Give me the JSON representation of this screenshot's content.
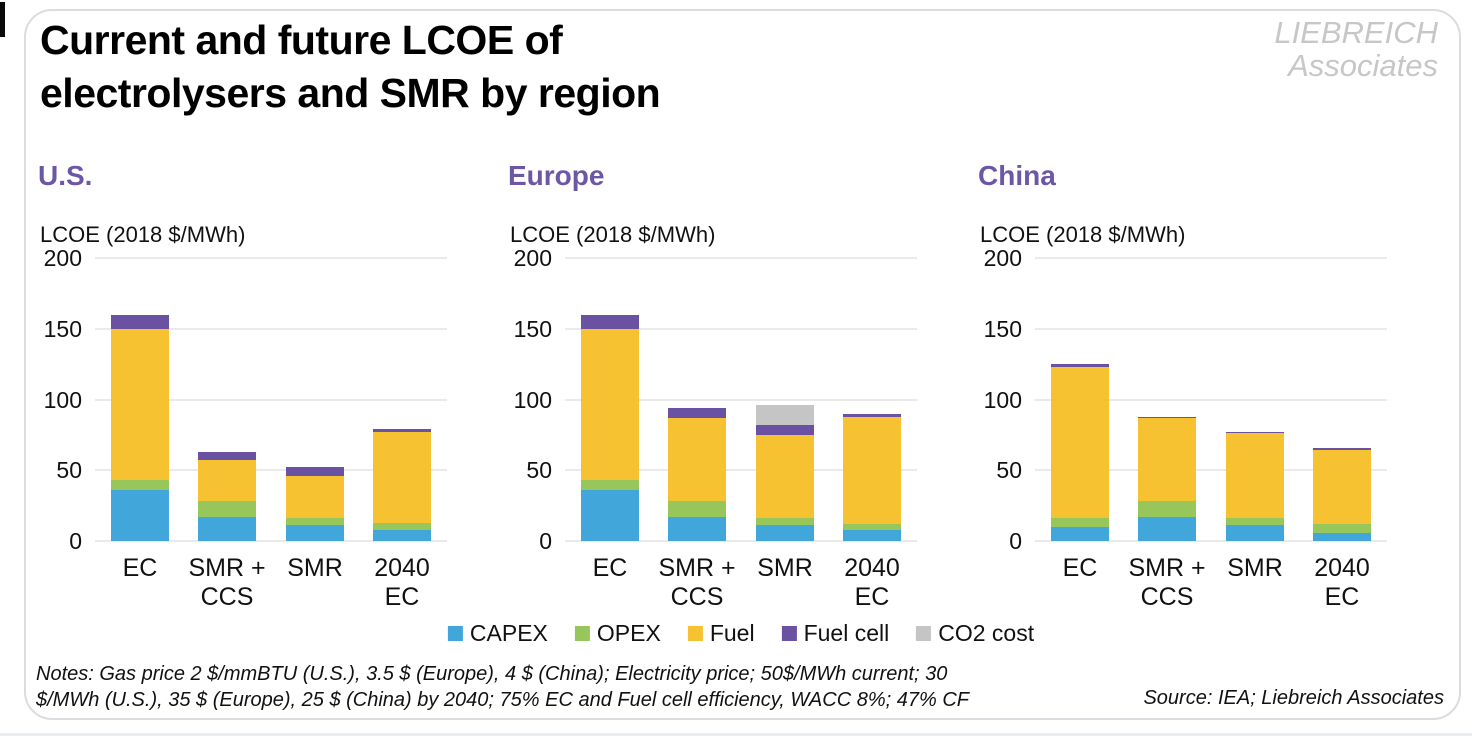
{
  "header": {
    "title_line1": "Current and future LCOE of",
    "title_line2": "electrolysers and SMR by region",
    "logo_line1": "LIEBREICH",
    "logo_line2": "Associates"
  },
  "footer": {
    "notes_line1": "Notes: Gas price 2 $/mmBTU (U.S.), 3.5 $ (Europe), 4 $ (China); Electricity price; 50$/MWh current; 30",
    "notes_line2": "$/MWh (U.S.), 35 $ (Europe), 25 $ (China) by 2040; 75% EC and Fuel cell efficiency, WACC 8%; 47% CF",
    "source": "Source: IEA; Liebreich Associates"
  },
  "colors": {
    "capex_blue": "#41a7db",
    "opex_green": "#97c75a",
    "fuel_yellow": "#f7c231",
    "fuel_cell_purple": "#6a51a2",
    "co2_gray": "#c5c5c5",
    "region_title_purple": "#6c57a6",
    "gridline_gray": "#eaeaea",
    "logo_gray": "#c7c7c7",
    "card_border": "#d9dce0"
  },
  "legend": [
    {
      "label": "CAPEX",
      "color": "#41a7db"
    },
    {
      "label": "OPEX",
      "color": "#97c75a"
    },
    {
      "label": "Fuel",
      "color": "#f7c231"
    },
    {
      "label": "Fuel cell",
      "color": "#6a51a2"
    },
    {
      "label": "CO2 cost",
      "color": "#c5c5c5"
    }
  ],
  "chart_data": [
    {
      "type": "bar",
      "stacked": true,
      "region": "U.S.",
      "ylabel": "LCOE (2018 $/MWh)",
      "ylim": [
        0,
        200
      ],
      "ytick_step": 50,
      "grid": true,
      "legend_position": "bottom-shared",
      "categories": [
        "EC",
        "SMR +\nCCS",
        "SMR",
        "2040\nEC"
      ],
      "series": [
        {
          "name": "CAPEX",
          "color": "#41a7db",
          "values": [
            36,
            17,
            11,
            8
          ]
        },
        {
          "name": "OPEX",
          "color": "#97c75a",
          "values": [
            7,
            11,
            5,
            5
          ]
        },
        {
          "name": "Fuel",
          "color": "#f7c231",
          "values": [
            107,
            29,
            30,
            64
          ]
        },
        {
          "name": "Fuel cell",
          "color": "#6a51a2",
          "values": [
            10,
            6,
            6,
            2
          ]
        },
        {
          "name": "CO2 cost",
          "color": "#c5c5c5",
          "values": [
            0,
            0,
            0,
            0
          ]
        }
      ],
      "totals": [
        160,
        63,
        52,
        79
      ]
    },
    {
      "type": "bar",
      "stacked": true,
      "region": "Europe",
      "ylabel": "LCOE (2018 $/MWh)",
      "ylim": [
        0,
        200
      ],
      "ytick_step": 50,
      "grid": true,
      "legend_position": "bottom-shared",
      "categories": [
        "EC",
        "SMR +\nCCS",
        "SMR",
        "2040\nEC"
      ],
      "series": [
        {
          "name": "CAPEX",
          "color": "#41a7db",
          "values": [
            36,
            17,
            11,
            8
          ]
        },
        {
          "name": "OPEX",
          "color": "#97c75a",
          "values": [
            7,
            11,
            5,
            4
          ]
        },
        {
          "name": "Fuel",
          "color": "#f7c231",
          "values": [
            107,
            59,
            59,
            76
          ]
        },
        {
          "name": "Fuel cell",
          "color": "#6a51a2",
          "values": [
            10,
            7,
            7,
            2
          ]
        },
        {
          "name": "CO2 cost",
          "color": "#c5c5c5",
          "values": [
            0,
            0,
            14,
            0
          ]
        }
      ],
      "totals": [
        160,
        94,
        96,
        90
      ]
    },
    {
      "type": "bar",
      "stacked": true,
      "region": "China",
      "ylabel": "LCOE (2018 $/MWh)",
      "ylim": [
        0,
        200
      ],
      "ytick_step": 50,
      "grid": true,
      "legend_position": "bottom-shared",
      "categories": [
        "EC",
        "SMR +\nCCS",
        "SMR",
        "2040\nEC"
      ],
      "series": [
        {
          "name": "CAPEX",
          "color": "#41a7db",
          "values": [
            10,
            17,
            11,
            6
          ]
        },
        {
          "name": "OPEX",
          "color": "#97c75a",
          "values": [
            6,
            11,
            5,
            6
          ]
        },
        {
          "name": "Fuel",
          "color": "#f7c231",
          "values": [
            107,
            59,
            60,
            52
          ]
        },
        {
          "name": "Fuel cell",
          "color": "#6a51a2",
          "values": [
            2,
            1,
            1,
            2
          ]
        },
        {
          "name": "CO2 cost",
          "color": "#c5c5c5",
          "values": [
            0,
            0,
            0,
            0
          ]
        }
      ],
      "totals": [
        125,
        88,
        77,
        66
      ]
    }
  ]
}
